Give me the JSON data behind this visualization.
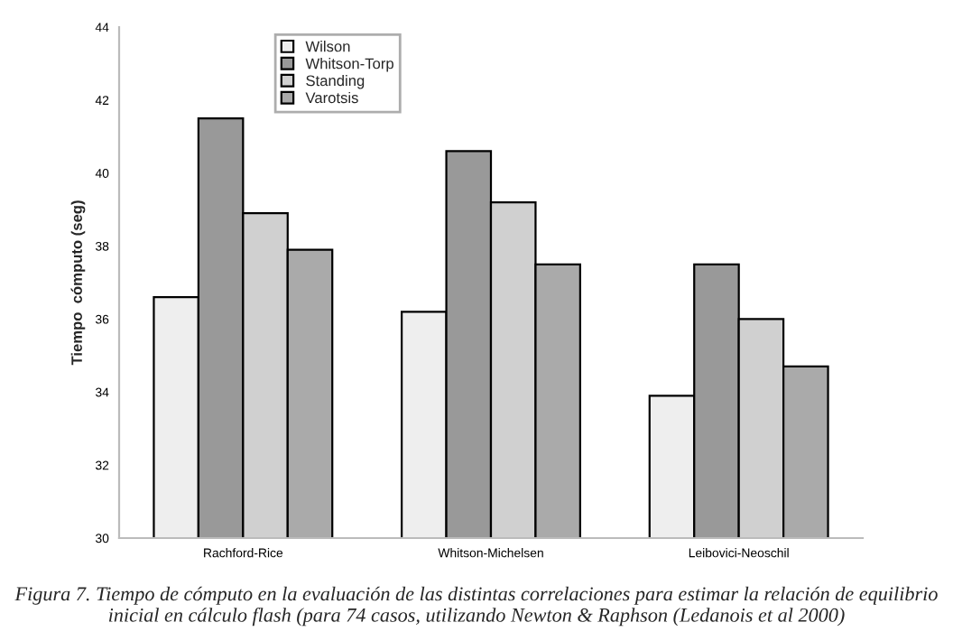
{
  "chart_data": {
    "type": "bar",
    "ylabel": "Tiempo  cómputo (seg)",
    "categories": [
      "Rachford-Rice",
      "Whitson-Michelsen",
      "Leibovici-Neoschil"
    ],
    "series": [
      {
        "name": "Wilson",
        "color": "#eeeeee",
        "values": [
          36.6,
          36.2,
          33.9
        ]
      },
      {
        "name": "Whitson-Torp",
        "color": "#999999",
        "values": [
          41.5,
          40.6,
          37.5
        ]
      },
      {
        "name": "Standing",
        "color": "#d0d0d0",
        "values": [
          38.9,
          39.2,
          36.0
        ]
      },
      {
        "name": "Varotsis",
        "color": "#aaaaaa",
        "values": [
          37.9,
          37.5,
          34.7
        ]
      }
    ],
    "ylim": [
      30,
      44
    ],
    "yticks": [
      30,
      32,
      34,
      36,
      38,
      40,
      42,
      44
    ],
    "grid": false,
    "legend": "top",
    "annotations": [
      "Figura 7. Tiempo de cómputo en la evaluación de las distintas correlaciones para estimar la relación de equilibrio inicial en cálculo flash (para 74 casos, utilizando Newton & Raphson (Ledanois et al 2000)"
    ]
  }
}
